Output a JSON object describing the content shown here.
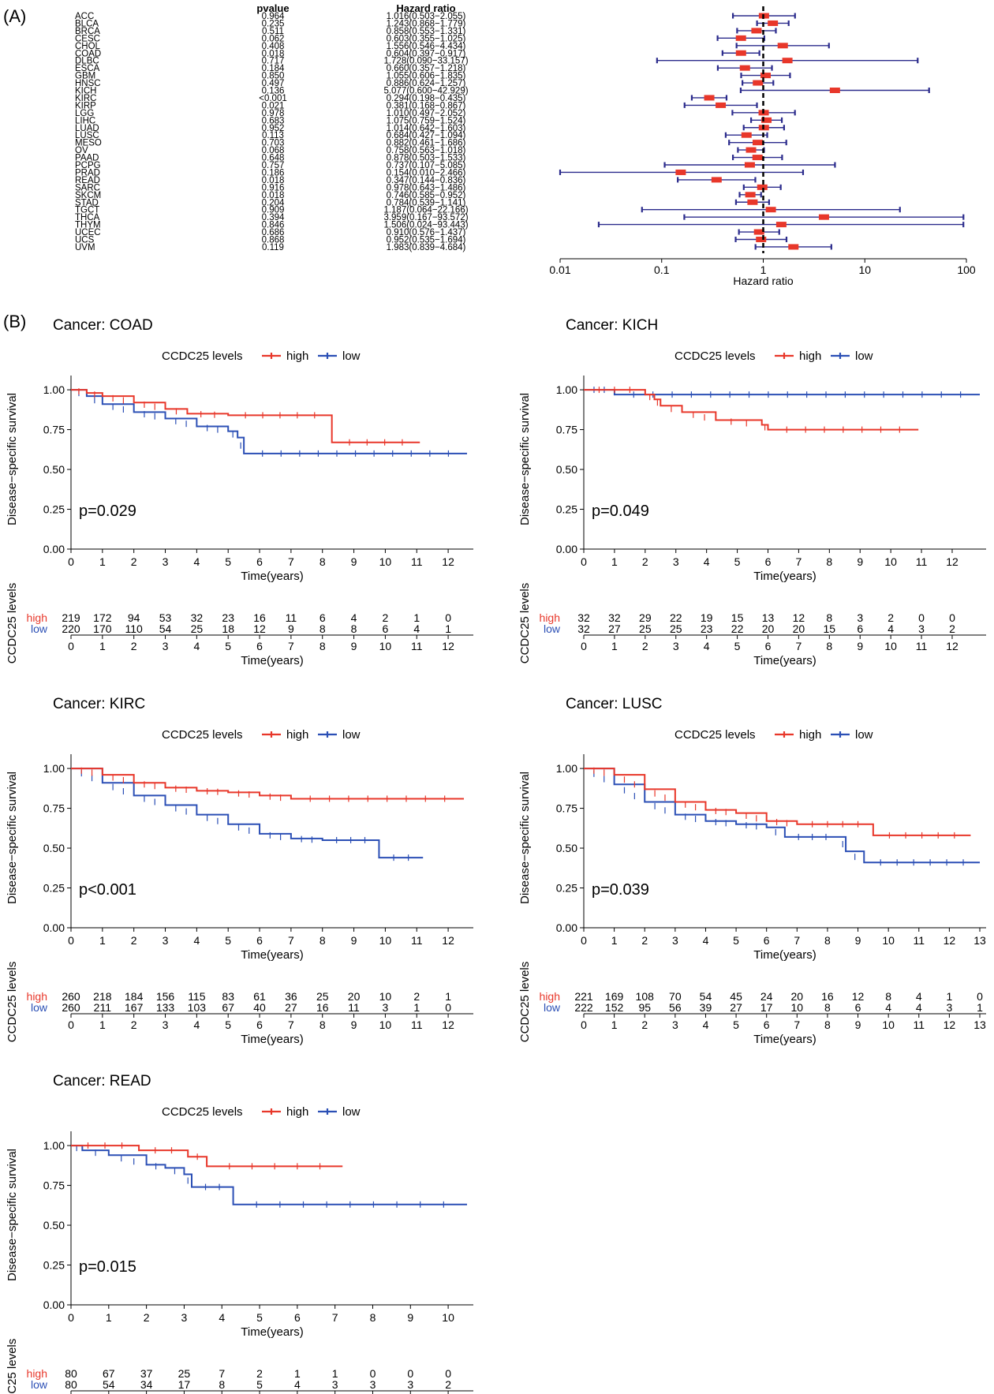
{
  "panel_labels": [
    "(A)",
    "(B)"
  ],
  "forest": {
    "header_pvalue": "pvalue",
    "header_hr": "Hazard ratio",
    "xlabel": "Hazard ratio",
    "ticks": [
      "0.01",
      "0.1",
      "1",
      "10",
      "100"
    ],
    "rows": [
      {
        "cancer": "ACC",
        "pvalue": "0.964",
        "hr_text": "1.016(0.503−2.055)",
        "hr": 1.016,
        "lo": 0.503,
        "hi": 2.055
      },
      {
        "cancer": "BLCA",
        "pvalue": "0.235",
        "hr_text": "1.243(0.868−1.779)",
        "hr": 1.243,
        "lo": 0.868,
        "hi": 1.779
      },
      {
        "cancer": "BRCA",
        "pvalue": "0.511",
        "hr_text": "0.858(0.553−1.331)",
        "hr": 0.858,
        "lo": 0.553,
        "hi": 1.331
      },
      {
        "cancer": "CESC",
        "pvalue": "0.062",
        "hr_text": "0.603(0.355−1.025)",
        "hr": 0.603,
        "lo": 0.355,
        "hi": 1.025
      },
      {
        "cancer": "CHOL",
        "pvalue": "0.408",
        "hr_text": "1.556(0.546−4.434)",
        "hr": 1.556,
        "lo": 0.546,
        "hi": 4.434
      },
      {
        "cancer": "COAD",
        "pvalue": "0.018",
        "hr_text": "0.604(0.397−0.917)",
        "hr": 0.604,
        "lo": 0.397,
        "hi": 0.917
      },
      {
        "cancer": "DLBC",
        "pvalue": "0.717",
        "hr_text": "1.728(0.090−33.157)",
        "hr": 1.728,
        "lo": 0.09,
        "hi": 33.157
      },
      {
        "cancer": "ESCA",
        "pvalue": "0.184",
        "hr_text": "0.660(0.357−1.218)",
        "hr": 0.66,
        "lo": 0.357,
        "hi": 1.218
      },
      {
        "cancer": "GBM",
        "pvalue": "0.850",
        "hr_text": "1.055(0.606−1.835)",
        "hr": 1.055,
        "lo": 0.606,
        "hi": 1.835
      },
      {
        "cancer": "HNSC",
        "pvalue": "0.497",
        "hr_text": "0.886(0.624−1.257)",
        "hr": 0.886,
        "lo": 0.624,
        "hi": 1.257
      },
      {
        "cancer": "KICH",
        "pvalue": "0.136",
        "hr_text": "5.077(0.600−42.929)",
        "hr": 5.077,
        "lo": 0.6,
        "hi": 42.929
      },
      {
        "cancer": "KIRC",
        "pvalue": "<0.001",
        "hr_text": "0.294(0.198−0.435)",
        "hr": 0.294,
        "lo": 0.198,
        "hi": 0.435
      },
      {
        "cancer": "KIRP",
        "pvalue": "0.021",
        "hr_text": "0.381(0.168−0.867)",
        "hr": 0.381,
        "lo": 0.168,
        "hi": 0.867
      },
      {
        "cancer": "LGG",
        "pvalue": "0.978",
        "hr_text": "1.010(0.497−2.052)",
        "hr": 1.01,
        "lo": 0.497,
        "hi": 2.052
      },
      {
        "cancer": "LIHC",
        "pvalue": "0.683",
        "hr_text": "1.075(0.759−1.524)",
        "hr": 1.075,
        "lo": 0.759,
        "hi": 1.524
      },
      {
        "cancer": "LUAD",
        "pvalue": "0.952",
        "hr_text": "1.014(0.642−1.603)",
        "hr": 1.014,
        "lo": 0.642,
        "hi": 1.603
      },
      {
        "cancer": "LUSC",
        "pvalue": "0.113",
        "hr_text": "0.684(0.427−1.094)",
        "hr": 0.684,
        "lo": 0.427,
        "hi": 1.094
      },
      {
        "cancer": "MESO",
        "pvalue": "0.703",
        "hr_text": "0.882(0.461−1.686)",
        "hr": 0.882,
        "lo": 0.461,
        "hi": 1.686
      },
      {
        "cancer": "OV",
        "pvalue": "0.068",
        "hr_text": "0.758(0.563−1.018)",
        "hr": 0.758,
        "lo": 0.563,
        "hi": 1.018
      },
      {
        "cancer": "PAAD",
        "pvalue": "0.648",
        "hr_text": "0.878(0.503−1.533)",
        "hr": 0.878,
        "lo": 0.503,
        "hi": 1.533
      },
      {
        "cancer": "PCPG",
        "pvalue": "0.757",
        "hr_text": "0.737(0.107−5.085)",
        "hr": 0.737,
        "lo": 0.107,
        "hi": 5.085
      },
      {
        "cancer": "PRAD",
        "pvalue": "0.186",
        "hr_text": "0.154(0.010−2.466)",
        "hr": 0.154,
        "lo": 0.01,
        "hi": 2.466
      },
      {
        "cancer": "READ",
        "pvalue": "0.018",
        "hr_text": "0.347(0.144−0.836)",
        "hr": 0.347,
        "lo": 0.144,
        "hi": 0.836
      },
      {
        "cancer": "SARC",
        "pvalue": "0.916",
        "hr_text": "0.978(0.643−1.486)",
        "hr": 0.978,
        "lo": 0.643,
        "hi": 1.486
      },
      {
        "cancer": "SKCM",
        "pvalue": "0.018",
        "hr_text": "0.746(0.585−0.952)",
        "hr": 0.746,
        "lo": 0.585,
        "hi": 0.952
      },
      {
        "cancer": "STAD",
        "pvalue": "0.204",
        "hr_text": "0.784(0.539−1.141)",
        "hr": 0.784,
        "lo": 0.539,
        "hi": 1.141
      },
      {
        "cancer": "TGCT",
        "pvalue": "0.909",
        "hr_text": "1.187(0.064−22.166)",
        "hr": 1.187,
        "lo": 0.064,
        "hi": 22.166
      },
      {
        "cancer": "THCA",
        "pvalue": "0.394",
        "hr_text": "3.959(0.167−93.572)",
        "hr": 3.959,
        "lo": 0.167,
        "hi": 93.572
      },
      {
        "cancer": "THYM",
        "pvalue": "0.846",
        "hr_text": "1.506(0.024−93.443)",
        "hr": 1.506,
        "lo": 0.024,
        "hi": 93.443
      },
      {
        "cancer": "UCEC",
        "pvalue": "0.686",
        "hr_text": "0.910(0.576−1.437)",
        "hr": 0.91,
        "lo": 0.576,
        "hi": 1.437
      },
      {
        "cancer": "UCS",
        "pvalue": "0.868",
        "hr_text": "0.952(0.535−1.694)",
        "hr": 0.952,
        "lo": 0.535,
        "hi": 1.694
      },
      {
        "cancer": "UVM",
        "pvalue": "0.119",
        "hr_text": "1.983(0.839−4.684)",
        "hr": 1.983,
        "lo": 0.839,
        "hi": 4.684
      }
    ]
  },
  "km_common": {
    "legend_title": "CCDC25 levels",
    "legend_high": "high",
    "legend_low": "low",
    "ylabel": "Disease−specific survival",
    "xlabel": "Time(years)",
    "risk_ylabel": "CCDC25 levels",
    "risk_high": "high",
    "risk_low": "low",
    "yticks": [
      "0.00",
      "0.25",
      "0.50",
      "0.75",
      "1.00"
    ],
    "colors": {
      "high": "#e8372a",
      "low": "#2b4fb5"
    }
  },
  "km": [
    {
      "title": "Cancer: COAD",
      "pvalue": "p=0.029",
      "xmax": 12.6,
      "xticks": [
        0,
        1,
        2,
        3,
        4,
        5,
        6,
        7,
        8,
        9,
        10,
        11,
        12
      ],
      "high_curve": [
        [
          0,
          1
        ],
        [
          0.5,
          0.98
        ],
        [
          1,
          0.96
        ],
        [
          2,
          0.92
        ],
        [
          3,
          0.88
        ],
        [
          3.7,
          0.85
        ],
        [
          5,
          0.84
        ],
        [
          8.3,
          0.84
        ],
        [
          8.3,
          0.67
        ],
        [
          11.1,
          0.67
        ]
      ],
      "low_curve": [
        [
          0,
          1
        ],
        [
          0.5,
          0.96
        ],
        [
          1,
          0.91
        ],
        [
          2,
          0.86
        ],
        [
          3,
          0.82
        ],
        [
          4,
          0.77
        ],
        [
          5,
          0.74
        ],
        [
          5.3,
          0.7
        ],
        [
          5.5,
          0.6
        ],
        [
          12.6,
          0.6
        ]
      ],
      "high_risk": [
        219,
        172,
        94,
        53,
        32,
        23,
        16,
        11,
        6,
        4,
        2,
        1,
        0
      ],
      "low_risk": [
        220,
        170,
        110,
        54,
        25,
        18,
        12,
        9,
        8,
        8,
        6,
        4,
        1
      ]
    },
    {
      "title": "Cancer: KICH",
      "pvalue": "p=0.049",
      "xmax": 12.9,
      "xticks": [
        0,
        1,
        2,
        3,
        4,
        5,
        6,
        7,
        8,
        9,
        10,
        11,
        12
      ],
      "high_curve": [
        [
          0,
          1
        ],
        [
          2,
          1
        ],
        [
          2,
          0.97
        ],
        [
          2.3,
          0.94
        ],
        [
          2.5,
          0.9
        ],
        [
          3.2,
          0.86
        ],
        [
          4.3,
          0.81
        ],
        [
          5.8,
          0.78
        ],
        [
          6,
          0.75
        ],
        [
          10.9,
          0.75
        ]
      ],
      "low_curve": [
        [
          0,
          1
        ],
        [
          1,
          1
        ],
        [
          1,
          0.97
        ],
        [
          12.9,
          0.97
        ]
      ],
      "high_risk": [
        32,
        32,
        29,
        22,
        19,
        15,
        13,
        12,
        8,
        3,
        2,
        0,
        0
      ],
      "low_risk": [
        32,
        27,
        25,
        25,
        23,
        22,
        20,
        20,
        15,
        6,
        4,
        3,
        2
      ]
    },
    {
      "title": "Cancer: KIRC",
      "pvalue": "p<0.001",
      "xmax": 12.6,
      "xticks": [
        0,
        1,
        2,
        3,
        4,
        5,
        6,
        7,
        8,
        9,
        10,
        11,
        12
      ],
      "high_curve": [
        [
          0,
          1
        ],
        [
          1,
          0.96
        ],
        [
          2,
          0.91
        ],
        [
          3,
          0.88
        ],
        [
          4,
          0.86
        ],
        [
          5,
          0.85
        ],
        [
          6,
          0.83
        ],
        [
          7,
          0.81
        ],
        [
          12.5,
          0.81
        ]
      ],
      "low_curve": [
        [
          0,
          1
        ],
        [
          1,
          0.91
        ],
        [
          2,
          0.83
        ],
        [
          3,
          0.77
        ],
        [
          4,
          0.71
        ],
        [
          5,
          0.65
        ],
        [
          6,
          0.59
        ],
        [
          7,
          0.56
        ],
        [
          8,
          0.55
        ],
        [
          9.8,
          0.55
        ],
        [
          9.8,
          0.44
        ],
        [
          11.2,
          0.44
        ]
      ],
      "high_risk": [
        260,
        218,
        184,
        156,
        115,
        83,
        61,
        36,
        25,
        20,
        10,
        2,
        1
      ],
      "low_risk": [
        260,
        211,
        167,
        133,
        103,
        67,
        40,
        27,
        16,
        11,
        3,
        1,
        0
      ]
    },
    {
      "title": "Cancer: LUSC",
      "pvalue": "p=0.039",
      "xmax": 13.0,
      "xticks": [
        0,
        1,
        2,
        3,
        4,
        5,
        6,
        7,
        8,
        9,
        10,
        11,
        12,
        13
      ],
      "high_curve": [
        [
          0,
          1
        ],
        [
          1,
          0.96
        ],
        [
          2,
          0.87
        ],
        [
          3,
          0.79
        ],
        [
          4,
          0.74
        ],
        [
          5,
          0.72
        ],
        [
          6,
          0.67
        ],
        [
          7,
          0.65
        ],
        [
          9.5,
          0.65
        ],
        [
          9.5,
          0.58
        ],
        [
          12.7,
          0.58
        ]
      ],
      "low_curve": [
        [
          0,
          1
        ],
        [
          1,
          0.9
        ],
        [
          2,
          0.79
        ],
        [
          3,
          0.71
        ],
        [
          4,
          0.67
        ],
        [
          5,
          0.65
        ],
        [
          6,
          0.63
        ],
        [
          6.6,
          0.57
        ],
        [
          8.4,
          0.57
        ],
        [
          8.6,
          0.48
        ],
        [
          9.2,
          0.41
        ],
        [
          13,
          0.41
        ]
      ],
      "high_risk": [
        221,
        169,
        108,
        70,
        54,
        45,
        24,
        20,
        16,
        12,
        8,
        4,
        1,
        0
      ],
      "low_risk": [
        222,
        152,
        95,
        56,
        39,
        27,
        17,
        10,
        8,
        6,
        4,
        4,
        3,
        1
      ]
    },
    {
      "title": "Cancer: READ",
      "pvalue": "p=0.015",
      "xmax": 10.5,
      "xticks": [
        0,
        1,
        2,
        3,
        4,
        5,
        6,
        7,
        8,
        9,
        10
      ],
      "high_curve": [
        [
          0,
          1
        ],
        [
          1.8,
          1
        ],
        [
          1.8,
          0.97
        ],
        [
          3.1,
          0.97
        ],
        [
          3.1,
          0.93
        ],
        [
          3.6,
          0.93
        ],
        [
          3.6,
          0.87
        ],
        [
          7.2,
          0.87
        ]
      ],
      "low_curve": [
        [
          0,
          1
        ],
        [
          0.3,
          0.97
        ],
        [
          1,
          0.94
        ],
        [
          2,
          0.88
        ],
        [
          2.5,
          0.86
        ],
        [
          3,
          0.82
        ],
        [
          3.2,
          0.74
        ],
        [
          4.3,
          0.74
        ],
        [
          4.3,
          0.63
        ],
        [
          10.5,
          0.63
        ]
      ],
      "high_risk": [
        80,
        67,
        37,
        25,
        7,
        2,
        1,
        1,
        0,
        0,
        0
      ],
      "low_risk": [
        80,
        54,
        34,
        17,
        8,
        5,
        4,
        3,
        3,
        3,
        2
      ]
    }
  ]
}
